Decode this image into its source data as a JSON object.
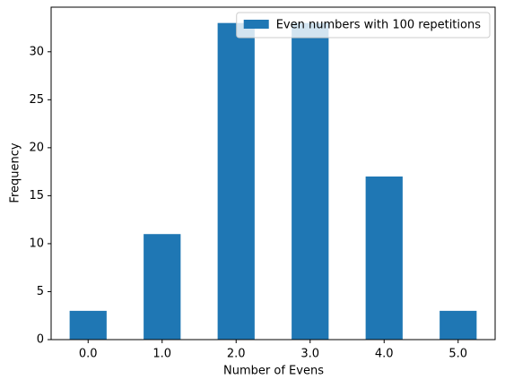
{
  "chart_data": {
    "type": "bar",
    "x_label": "Number of Evens",
    "y_label": "Frequency",
    "categories": [
      "0.0",
      "1.0",
      "2.0",
      "3.0",
      "4.0",
      "5.0"
    ],
    "series": [
      {
        "name": "Even numbers with 100 repetitions",
        "color": "#1f77b4",
        "values": [
          3,
          11,
          33,
          33,
          17,
          3
        ]
      }
    ],
    "ylim": [
      0,
      34.65
    ],
    "yticks": [
      0,
      5,
      10,
      15,
      20,
      25,
      30
    ],
    "legend": "upper right"
  }
}
